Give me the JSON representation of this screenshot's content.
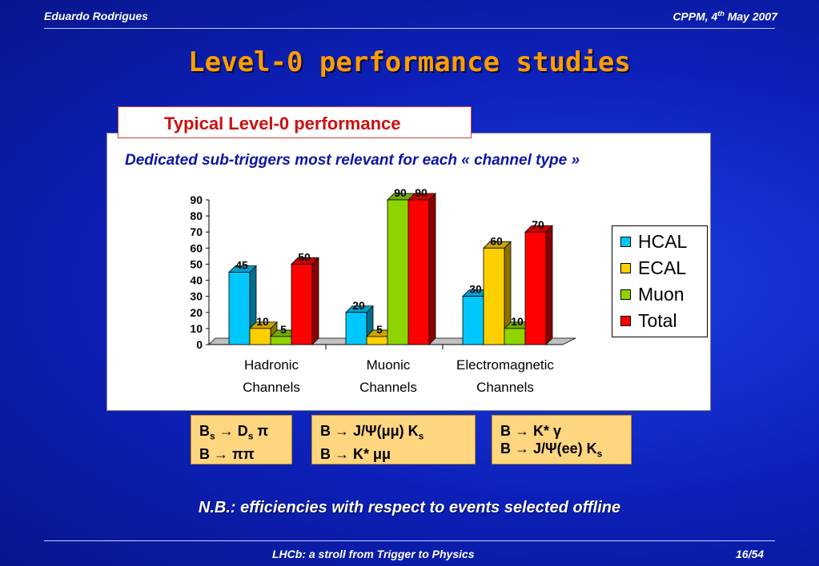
{
  "header": {
    "author": "Eduardo Rodrigues",
    "venue_prefix": "CPPM, 4",
    "venue_sup": "th",
    "venue_suffix": " May 2007"
  },
  "title": "Level-0 performance studies",
  "box_title": "Typical Level-0 performance",
  "chart_subtitle": "Dedicated sub-triggers most relevant for each « channel type »",
  "chart_data": {
    "type": "bar",
    "categories": [
      [
        "Hadronic",
        "Channels"
      ],
      [
        "Muonic",
        "Channels"
      ],
      [
        "Electromagnetic",
        "Channels"
      ]
    ],
    "series": [
      {
        "name": "HCAL",
        "color": "#00c8ff",
        "values": [
          45,
          20,
          30
        ]
      },
      {
        "name": "ECAL",
        "color": "#ffd000",
        "values": [
          10,
          5,
          60
        ]
      },
      {
        "name": "Muon",
        "color": "#8ed400",
        "values": [
          5,
          90,
          10
        ]
      },
      {
        "name": "Total",
        "color": "#ff0000",
        "values": [
          50,
          90,
          70
        ]
      }
    ],
    "yticks": [
      0,
      10,
      20,
      30,
      40,
      50,
      60,
      70,
      80,
      90
    ],
    "ylim": [
      0,
      90
    ],
    "legend_position": "right",
    "style": "3d-bar"
  },
  "decays": [
    [
      [
        "B",
        "s",
        " → D",
        "s",
        " π"
      ],
      [
        "B → ππ"
      ]
    ],
    [
      [
        "B → J/Ψ(μμ) K",
        "s",
        ""
      ],
      [
        "B → K* μμ"
      ]
    ],
    [
      [
        "B → K* γ"
      ],
      [
        "B → J/Ψ(ee) K",
        "s",
        ""
      ]
    ]
  ],
  "note": "N.B.: efficiencies with respect to events selected offline",
  "footer": {
    "title": "LHCb: a stroll from Trigger to Physics",
    "page": "16/54"
  }
}
